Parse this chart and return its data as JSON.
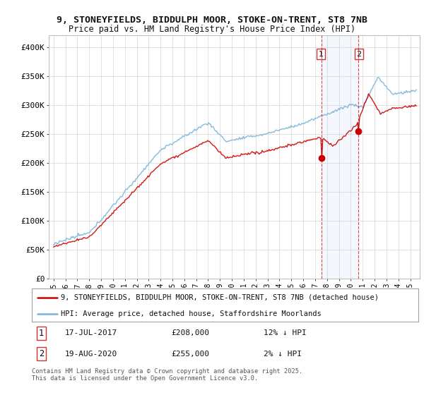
{
  "title_line1": "9, STONEYFIELDS, BIDDULPH MOOR, STOKE-ON-TRENT, ST8 7NB",
  "title_line2": "Price paid vs. HM Land Registry's House Price Index (HPI)",
  "ylim": [
    0,
    420000
  ],
  "yticks": [
    0,
    50000,
    100000,
    150000,
    200000,
    250000,
    300000,
    350000,
    400000
  ],
  "ytick_labels": [
    "£0",
    "£50K",
    "£100K",
    "£150K",
    "£200K",
    "£250K",
    "£300K",
    "£350K",
    "£400K"
  ],
  "hpi_color": "#7ab3d8",
  "price_color": "#cc0000",
  "p1_year": 2017.54,
  "p1_price": 208000,
  "p2_year": 2020.63,
  "p2_price": 255000,
  "legend_red": "9, STONEYFIELDS, BIDDULPH MOOR, STOKE-ON-TRENT, ST8 7NB (detached house)",
  "legend_blue": "HPI: Average price, detached house, Staffordshire Moorlands",
  "footer": "Contains HM Land Registry data © Crown copyright and database right 2025.\nThis data is licensed under the Open Government Licence v3.0.",
  "background_color": "#ffffff",
  "grid_color": "#cccccc"
}
